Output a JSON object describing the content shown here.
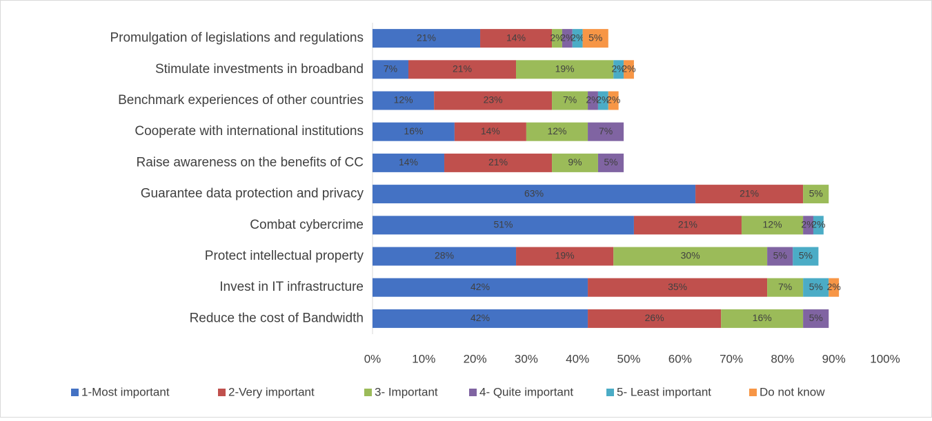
{
  "chart_data": {
    "type": "stacked-bar-horizontal",
    "categories": [
      "Promulgation of legislations and regulations",
      "Stimulate investments in broadband",
      "Benchmark experiences of other countries",
      "Cooperate with international institutions",
      "Raise awareness on the benefits of CC",
      "Guarantee data protection and privacy",
      "Combat cybercrime",
      "Protect intellectual property",
      "Invest in IT infrastructure",
      "Reduce the cost of Bandwidth"
    ],
    "series": [
      {
        "name": "1-Most important",
        "color": "#4472c4",
        "values": [
          21,
          7,
          12,
          16,
          14,
          63,
          51,
          28,
          42,
          42
        ],
        "value_labels": [
          "21%",
          "7%",
          "12%",
          "16%",
          "14%",
          "63%",
          "51%",
          "28%",
          "42%",
          "42%"
        ]
      },
      {
        "name": "2-Very important",
        "color": "#c0504d",
        "values": [
          14,
          21,
          23,
          14,
          21,
          21,
          21,
          19,
          35,
          26
        ],
        "value_labels": [
          "14%",
          "21%",
          "23%",
          "14%",
          "21%",
          "21%",
          "21%",
          "19%",
          "35%",
          "26%"
        ]
      },
      {
        "name": "3- Important",
        "color": "#9bbb59",
        "values": [
          2,
          19,
          7,
          12,
          9,
          5,
          12,
          30,
          7,
          16
        ],
        "value_labels": [
          "2%",
          "19%",
          "7%",
          "12%",
          "9%",
          "5%",
          "12%",
          "30%",
          "7%",
          "16%"
        ]
      },
      {
        "name": "4- Quite important",
        "color": "#8064a2",
        "values": [
          2,
          null,
          2,
          7,
          5,
          null,
          2,
          5,
          null,
          5
        ],
        "value_labels": [
          "2%",
          null,
          "2%",
          "7%",
          "5%",
          null,
          "2%",
          "5%",
          null,
          "5%"
        ]
      },
      {
        "name": "5- Least important",
        "color": "#4bacc6",
        "values": [
          2,
          2,
          2,
          null,
          null,
          null,
          2,
          5,
          5,
          null
        ],
        "value_labels": [
          "2%",
          "2%",
          "2%",
          null,
          null,
          null,
          "2%",
          "5%",
          "5%",
          null
        ]
      },
      {
        "name": "Do not know",
        "color": "#f79646",
        "values": [
          5,
          2,
          2,
          null,
          null,
          null,
          null,
          null,
          2,
          null
        ],
        "value_labels": [
          "5%",
          "2%",
          "2%",
          null,
          null,
          null,
          null,
          null,
          "2%",
          null
        ]
      }
    ],
    "xlim": [
      0,
      100
    ],
    "xticks": [
      {
        "value": 0,
        "label": "0%"
      },
      {
        "value": 10,
        "label": "10%"
      },
      {
        "value": 20,
        "label": "20%"
      },
      {
        "value": 30,
        "label": "30%"
      },
      {
        "value": 40,
        "label": "40%"
      },
      {
        "value": 50,
        "label": "50%"
      },
      {
        "value": 60,
        "label": "60%"
      },
      {
        "value": 70,
        "label": "70%"
      },
      {
        "value": 80,
        "label": "80%"
      },
      {
        "value": 90,
        "label": "90%"
      },
      {
        "value": 100,
        "label": "100%"
      }
    ],
    "legend": "bottom"
  }
}
